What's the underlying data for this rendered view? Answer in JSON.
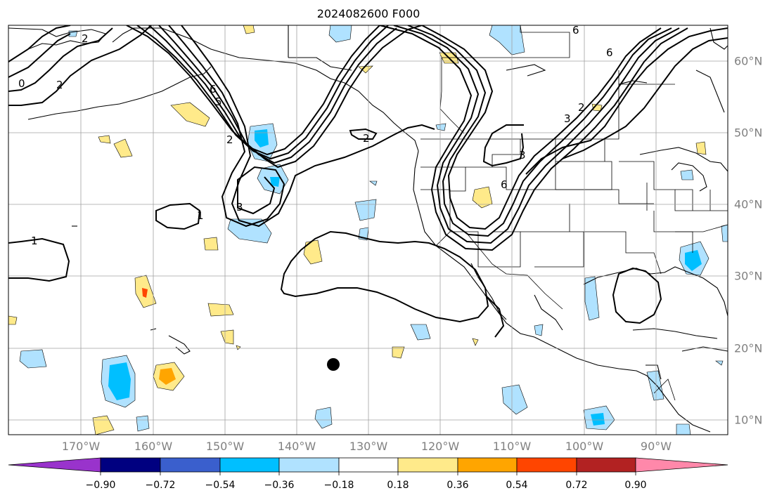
{
  "title": "2024082600 F000",
  "longitude_labels": [
    "170°W",
    "160°W",
    "150°W",
    "140°W",
    "130°W",
    "120°W",
    "110°W",
    "100°W",
    "90°W"
  ],
  "latitude_labels": [
    "60°N",
    "50°N",
    "40°N",
    "30°N",
    "20°N",
    "10°N"
  ],
  "colorbar": {
    "tick_labels": [
      "−0.90",
      "−0.72",
      "−0.54",
      "−0.36",
      "−0.18",
      "0.18",
      "0.36",
      "0.54",
      "0.72",
      "0.90"
    ],
    "colors": [
      "#9933cc",
      "#000080",
      "#3a5fcd",
      "#00bfff",
      "#b0e2ff",
      "#ffffff",
      "#ffea8a",
      "#ffa500",
      "#ff4500",
      "#b22222",
      "#ff88aa"
    ]
  },
  "contour_labels": [
    "0",
    "2",
    "6",
    "5",
    "2",
    "3",
    "2",
    "6",
    "3",
    "6",
    "6",
    "2",
    "3",
    "1",
    "1",
    "2"
  ],
  "marker": "black dot",
  "colors": {
    "axis_text": "#808080",
    "grid": "#a0a0a0",
    "contour": "#000000",
    "land_edge": "#000000"
  }
}
